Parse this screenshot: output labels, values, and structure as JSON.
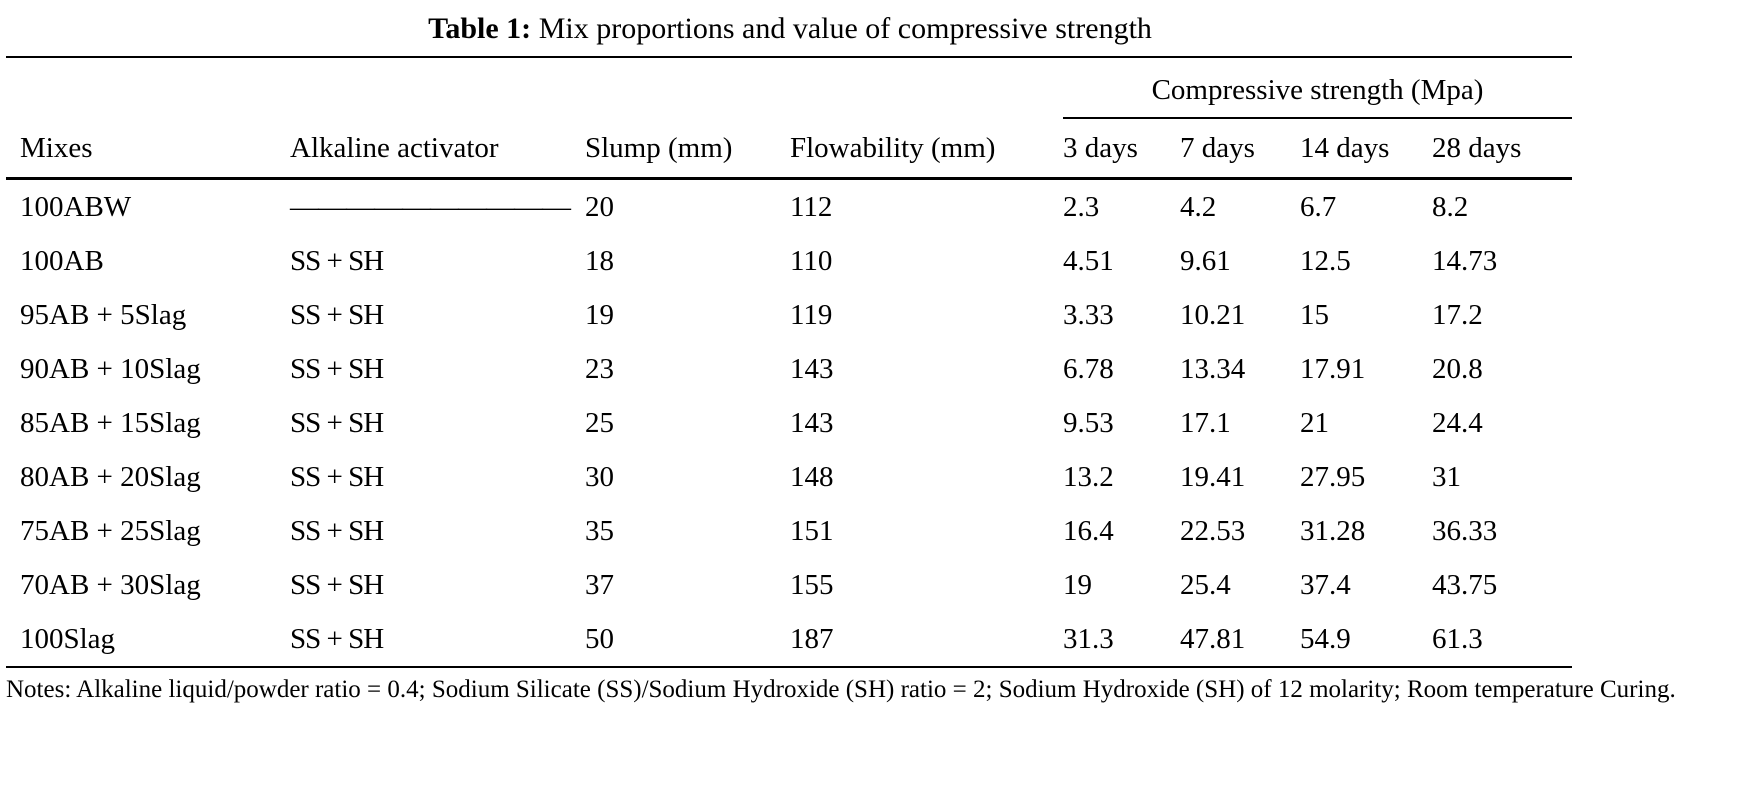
{
  "caption": {
    "label": "Table 1:",
    "text": "Mix proportions and value of compressive strength"
  },
  "table": {
    "type": "table",
    "span_header": "Compressive strength (Mpa)",
    "columns": [
      "Mixes",
      "Alkaline activator",
      "Slump (mm)",
      "Flowability (mm)",
      "3 days",
      "7 days",
      "14 days",
      "28 days"
    ],
    "rows": [
      [
        "100ABW",
        "——————————",
        "20",
        "112",
        "2.3",
        "4.2",
        "6.7",
        "8.2"
      ],
      [
        "100AB",
        "SS + SH",
        "18",
        "110",
        "4.51",
        "9.61",
        "12.5",
        "14.73"
      ],
      [
        "95AB + 5Slag",
        "SS + SH",
        "19",
        "119",
        "3.33",
        "10.21",
        "15",
        "17.2"
      ],
      [
        "90AB + 10Slag",
        "SS + SH",
        "23",
        "143",
        "6.78",
        "13.34",
        "17.91",
        "20.8"
      ],
      [
        "85AB + 15Slag",
        "SS + SH",
        "25",
        "143",
        "9.53",
        "17.1",
        "21",
        "24.4"
      ],
      [
        "80AB + 20Slag",
        "SS + SH",
        "30",
        "148",
        "13.2",
        "19.41",
        "27.95",
        "31"
      ],
      [
        "75AB + 25Slag",
        "SS + SH",
        "35",
        "151",
        "16.4",
        "22.53",
        "31.28",
        "36.33"
      ],
      [
        "70AB + 30Slag",
        "SS + SH",
        "37",
        "155",
        "19",
        "25.4",
        "37.4",
        "43.75"
      ],
      [
        "100Slag",
        "SS + SH",
        "50",
        "187",
        "31.3",
        "47.81",
        "54.9",
        "61.3"
      ]
    ]
  },
  "notes": "Notes: Alkaline liquid/powder ratio = 0.4; Sodium Silicate (SS)/Sodium Hydroxide (SH) ratio = 2; Sodium Hydroxide (SH) of 12 molarity; Room temperature Curing."
}
